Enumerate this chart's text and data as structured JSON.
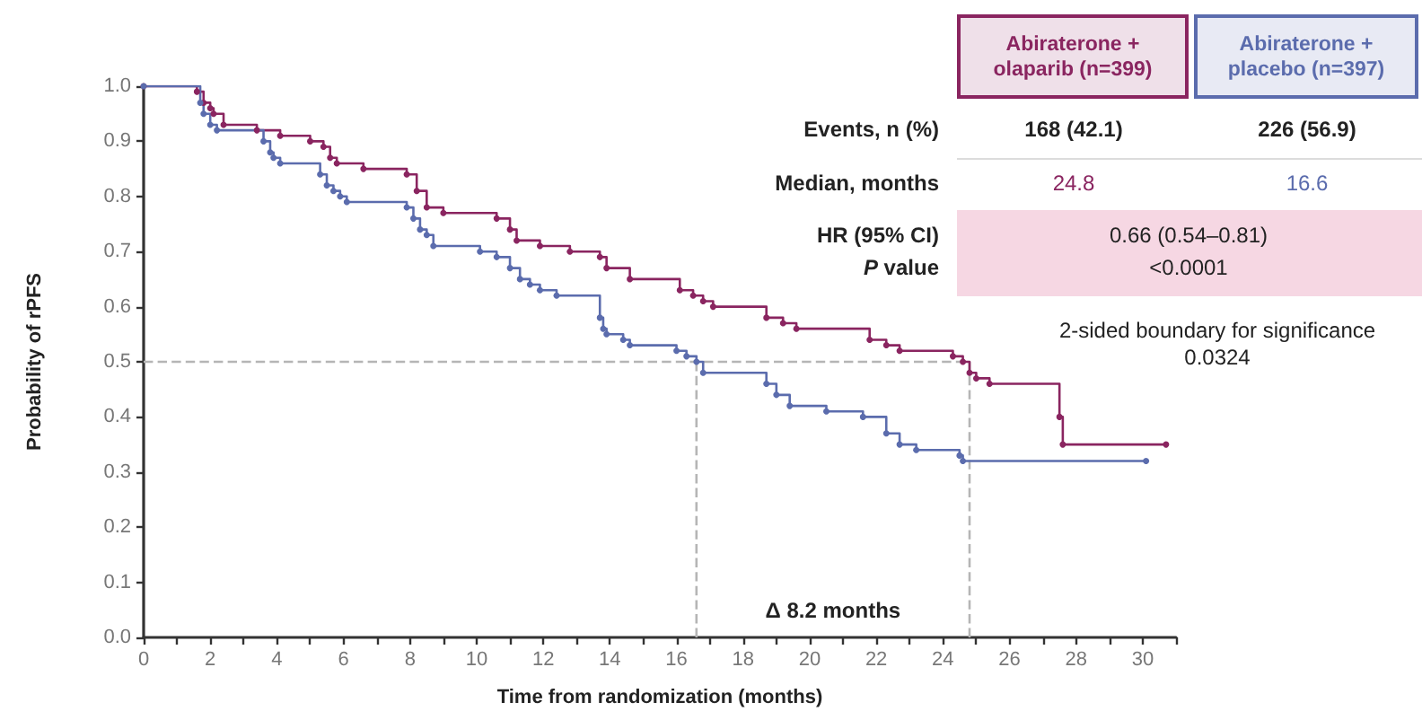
{
  "chart_data": {
    "type": "step",
    "xlabel": "Time from randomization (months)",
    "ylabel": "Probability of rPFS",
    "xlim": [
      0,
      31
    ],
    "xticks": [
      0,
      {
        "value": 1,
        "label": null
      },
      2,
      {
        "value": 3,
        "label": null
      },
      4,
      {
        "value": 5,
        "label": null
      },
      6,
      {
        "value": 7,
        "label": null
      },
      8,
      {
        "value": 9,
        "label": null
      },
      10,
      {
        "value": 11,
        "label": null
      },
      12,
      {
        "value": 13,
        "label": null
      },
      14,
      {
        "value": 15,
        "label": null
      },
      16,
      {
        "value": 17,
        "label": null
      },
      18,
      {
        "value": 19,
        "label": null
      },
      20,
      {
        "value": 21,
        "label": null
      },
      22,
      {
        "value": 23,
        "label": null
      },
      24,
      {
        "value": 25,
        "label": null
      },
      26,
      {
        "value": 27,
        "label": null
      },
      28,
      {
        "value": 29,
        "label": null
      },
      30,
      {
        "value": 31,
        "label": null
      }
    ],
    "ylim": [
      0,
      1
    ],
    "yticks": [
      {
        "value": 0,
        "label": "0.0"
      },
      0.1,
      0.2,
      0.3,
      0.4,
      0.5,
      0.6,
      0.7,
      0.8,
      0.9,
      {
        "value": 1,
        "label": "1.0"
      }
    ],
    "grid": false,
    "legend": "top right",
    "marker": "circle",
    "series": [
      {
        "name": "Abiraterone + olaparib (n=399)",
        "color": "#8a2560",
        "x": [
          0,
          1.6,
          1.8,
          2.0,
          2.1,
          2.4,
          3.4,
          4.1,
          5.0,
          5.4,
          5.6,
          5.8,
          6.6,
          7.9,
          8.2,
          8.5,
          9.0,
          10.6,
          11.0,
          11.2,
          11.9,
          12.8,
          13.7,
          13.9,
          14.6,
          16.1,
          16.5,
          16.8,
          17.1,
          18.7,
          19.2,
          19.6,
          21.8,
          22.3,
          22.7,
          24.3,
          24.6,
          24.8,
          25.0,
          25.4,
          27.5,
          27.6,
          30.7
        ],
        "values": [
          1.0,
          0.99,
          0.97,
          0.96,
          0.95,
          0.93,
          0.92,
          0.91,
          0.9,
          0.89,
          0.87,
          0.86,
          0.85,
          0.84,
          0.81,
          0.78,
          0.77,
          0.76,
          0.74,
          0.72,
          0.71,
          0.7,
          0.69,
          0.67,
          0.65,
          0.63,
          0.62,
          0.61,
          0.6,
          0.58,
          0.57,
          0.56,
          0.54,
          0.53,
          0.52,
          0.51,
          0.5,
          0.48,
          0.47,
          0.46,
          0.4,
          0.35,
          0.35
        ]
      },
      {
        "name": "Abiraterone + placebo (n=397)",
        "color": "#5b6cad",
        "x": [
          0,
          1.7,
          1.8,
          2.0,
          2.2,
          3.6,
          3.8,
          3.9,
          4.1,
          5.3,
          5.5,
          5.7,
          5.9,
          6.1,
          7.9,
          8.1,
          8.3,
          8.5,
          8.7,
          10.1,
          10.6,
          11.0,
          11.3,
          11.6,
          11.9,
          12.4,
          13.7,
          13.8,
          13.9,
          14.4,
          14.6,
          16.0,
          16.3,
          16.6,
          16.8,
          18.7,
          19.0,
          19.4,
          20.5,
          21.6,
          22.3,
          22.7,
          23.2,
          24.5,
          24.6,
          30.1
        ],
        "values": [
          1.0,
          0.97,
          0.95,
          0.93,
          0.92,
          0.9,
          0.88,
          0.87,
          0.86,
          0.84,
          0.82,
          0.81,
          0.8,
          0.79,
          0.78,
          0.76,
          0.74,
          0.73,
          0.71,
          0.7,
          0.69,
          0.67,
          0.65,
          0.64,
          0.63,
          0.62,
          0.58,
          0.56,
          0.55,
          0.54,
          0.53,
          0.52,
          0.51,
          0.5,
          0.48,
          0.46,
          0.44,
          0.42,
          0.41,
          0.4,
          0.37,
          0.35,
          0.34,
          0.33,
          0.32,
          0.32
        ]
      }
    ],
    "ref_lines": [
      {
        "axis": "y",
        "value": 0.5,
        "color": "#b5b5b5",
        "line_style": "dashed"
      },
      {
        "axis": "x",
        "value": 16.6,
        "color": "#b5b5b5",
        "line_style": "dashed"
      },
      {
        "axis": "x",
        "value": 24.8,
        "color": "#b5b5b5",
        "line_style": "dashed"
      }
    ],
    "annotations": [
      "Events, n (%)",
      "168 (42.1)",
      "226 (56.9)",
      "Median, months",
      "24.8",
      "16.6",
      "HR (95% CI)",
      "P value",
      "0.66 (0.54–0.81)",
      "<0.0001",
      "2-sided boundary for significance",
      "0.0324",
      "Δ 8.2 months"
    ]
  }
}
